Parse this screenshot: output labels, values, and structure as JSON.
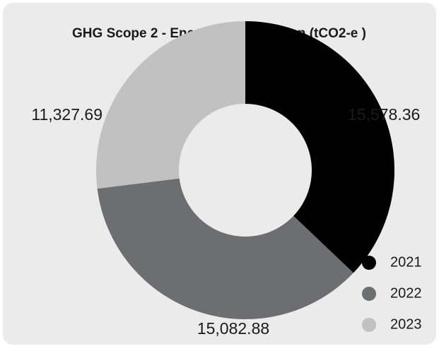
{
  "chart_data": {
    "type": "donut",
    "title": "GHG Scope 2 - Energy Consumption (tCO2-e )",
    "categories": [
      "2021",
      "2022",
      "2023"
    ],
    "values": [
      15578.36,
      15082.88,
      11327.69
    ],
    "value_labels": [
      "15,578.36",
      "15,082.88",
      "11,327.69"
    ],
    "colors": [
      "#000000",
      "#6d6e71",
      "#c1c1c1"
    ]
  }
}
